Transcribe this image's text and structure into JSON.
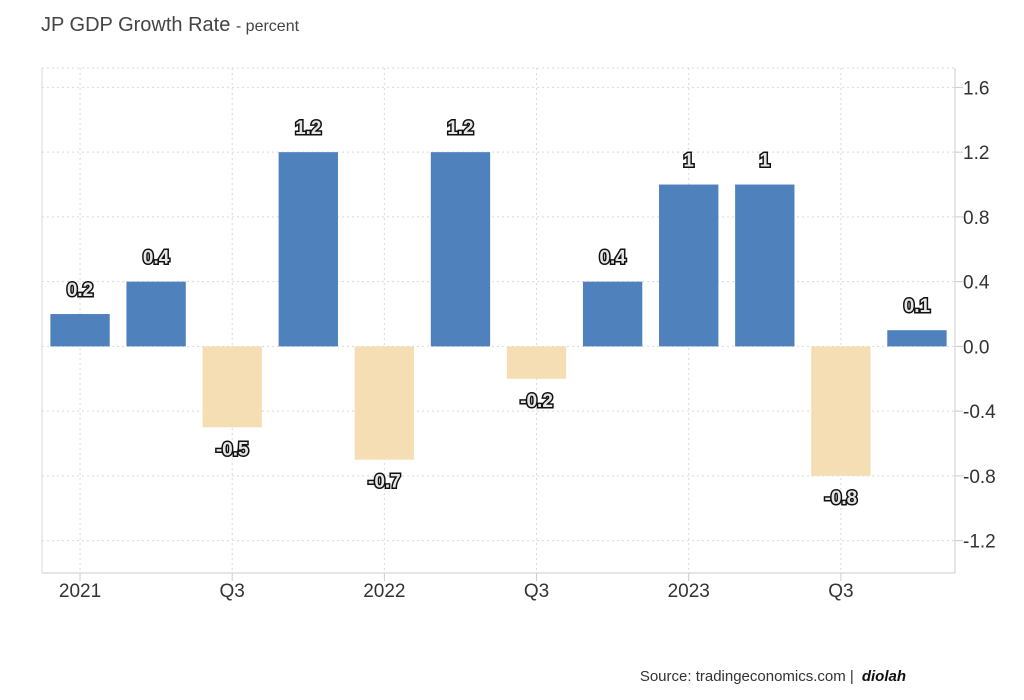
{
  "header": {
    "title": "JP GDP Growth Rate",
    "unit": "- percent"
  },
  "footer": {
    "source": "Source: tradingeconomics.com |",
    "brand": "diolah"
  },
  "colors": {
    "positive": "#4f81bd",
    "negative": "#f5deb3",
    "grid": "#d9d9d9",
    "axis": "#cccccc"
  },
  "chart_data": {
    "type": "bar",
    "title": "JP GDP Growth Rate",
    "ylabel": "percent",
    "xlabel": "",
    "categories": [
      "2021 Q1",
      "2021 Q2",
      "2021 Q3",
      "2021 Q4",
      "2022 Q1",
      "2022 Q2",
      "2022 Q3",
      "2022 Q4",
      "2023 Q1",
      "2023 Q2",
      "2023 Q3",
      "2023 Q4"
    ],
    "values": [
      0.2,
      0.4,
      -0.5,
      1.2,
      -0.7,
      1.2,
      -0.2,
      0.4,
      1,
      1,
      -0.8,
      0.1
    ],
    "data_labels": [
      "0.2",
      "0.4",
      "-0.5",
      "1.2",
      "-0.7",
      "1.2",
      "-0.2",
      "0.4",
      "1",
      "1",
      "-0.8",
      "0.1"
    ],
    "x_tick_labels": [
      {
        "index": 0,
        "label": "2021"
      },
      {
        "index": 2,
        "label": "Q3"
      },
      {
        "index": 4,
        "label": "2022"
      },
      {
        "index": 6,
        "label": "Q3"
      },
      {
        "index": 8,
        "label": "2023"
      },
      {
        "index": 10,
        "label": "Q3"
      }
    ],
    "y_ticks": [
      1.6,
      1.2,
      0.8,
      0.4,
      0.0,
      -0.4,
      -0.8,
      -1.2
    ],
    "y_tick_labels": [
      "1.6",
      "1.2",
      "0.8",
      "0.4",
      "0.0",
      "-0.4",
      "-0.8",
      "-1.2"
    ],
    "ylim": [
      -1.4,
      1.72
    ],
    "grid": true,
    "y_axis_side": "right"
  }
}
